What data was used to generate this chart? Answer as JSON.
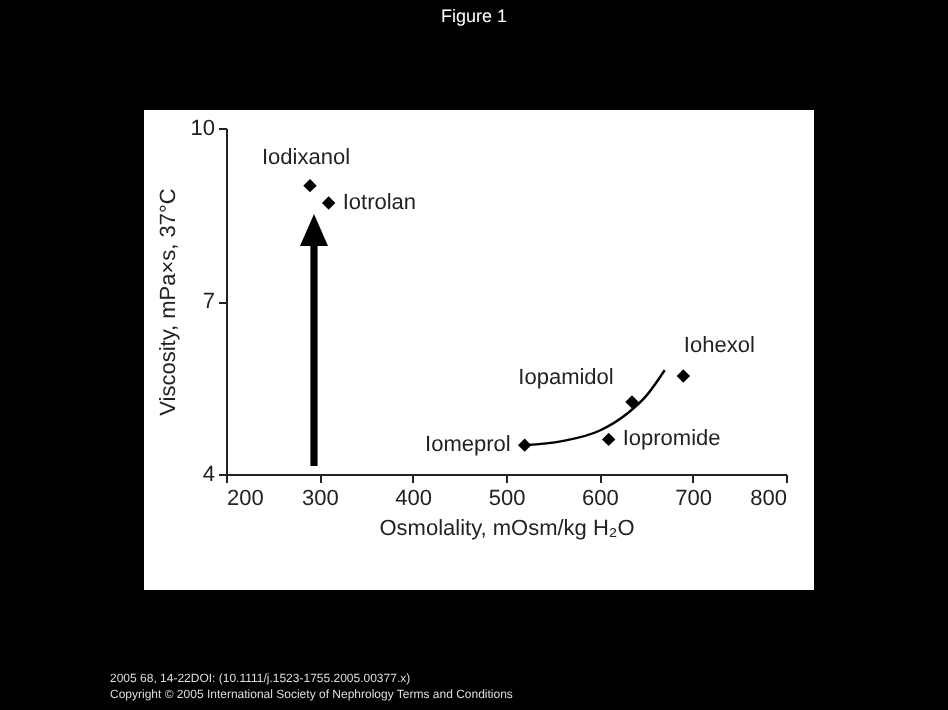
{
  "chart_data": {
    "type": "scatter",
    "title": "Figure 1",
    "xlabel": "Osmolality, mOsm/kg H₂O",
    "ylabel": "Viscosity, mPa×s, 37°C",
    "xlim": [
      200,
      800
    ],
    "xticks": [
      200,
      300,
      400,
      500,
      600,
      700,
      800
    ],
    "ylim": [
      4,
      10
    ],
    "yticks": [
      4,
      7,
      10
    ],
    "grid": false,
    "series": [
      {
        "marker": "diamond",
        "color": "#000000",
        "x": [
          290,
          310,
          690,
          635,
          610,
          520
        ],
        "values": [
          9.0,
          8.7,
          5.7,
          5.25,
          4.6,
          4.5
        ]
      },
      {
        "type": "line",
        "marker": "none",
        "color": "#000000",
        "x": [
          520,
          560,
          600,
          630,
          650,
          670
        ],
        "values": [
          4.5,
          4.57,
          4.75,
          5.05,
          5.35,
          5.8
        ]
      }
    ],
    "annotations": [
      {
        "text": "Iodixanol",
        "x": 290,
        "y": 9.0
      },
      {
        "text": "Iotrolan",
        "x": 310,
        "y": 8.7
      },
      {
        "text": "Iohexol",
        "x": 690,
        "y": 5.7
      },
      {
        "text": "Iopamidol",
        "x": 635,
        "y": 5.25
      },
      {
        "text": "Iopromide",
        "x": 610,
        "y": 4.6
      },
      {
        "text": "Iomeprol",
        "x": 520,
        "y": 4.5
      },
      "2005 68, 14-22DOI: (10.1111/j.1523-1755.2005.00377.x)",
      "Copyright © 2005 International Society of Nephrology Terms and Conditions"
    ]
  }
}
